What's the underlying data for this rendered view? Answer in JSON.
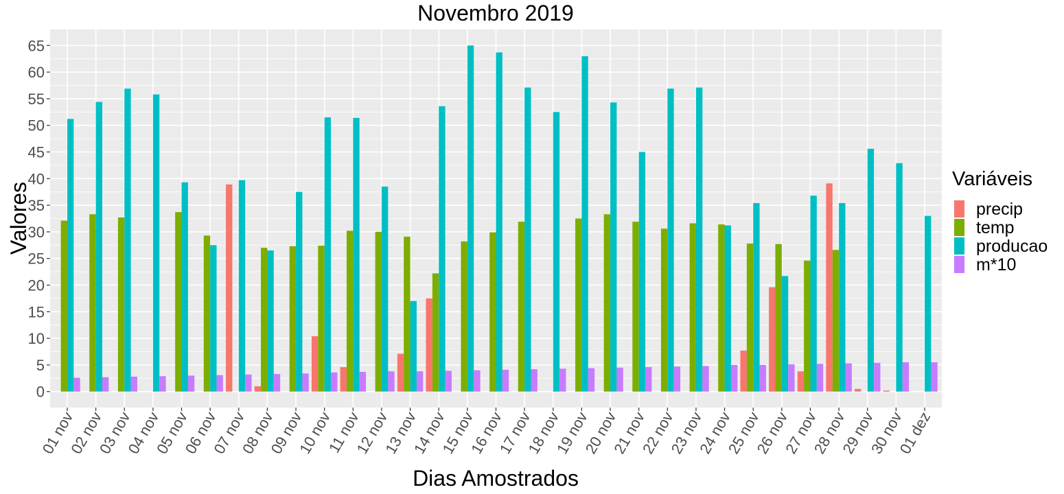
{
  "chart_data": {
    "type": "bar",
    "title": "Novembro 2019",
    "xlabel": "Dias Amostrados",
    "ylabel": "Valores",
    "ylim": [
      -3,
      68
    ],
    "yticks": [
      0,
      5,
      10,
      15,
      20,
      25,
      30,
      35,
      40,
      45,
      50,
      55,
      60,
      65
    ],
    "grid": true,
    "legend_title": "Variáveis",
    "legend_position": "right",
    "categories": [
      "01 nov",
      "02 nov",
      "03 nov",
      "04 nov",
      "05 nov",
      "06 nov",
      "07 nov",
      "08 nov",
      "09 nov",
      "10 nov",
      "11 nov",
      "12 nov",
      "13 nov",
      "14 nov",
      "15 nov",
      "16 nov",
      "17 nov",
      "18 nov",
      "19 nov",
      "20 nov",
      "21 nov",
      "22 nov",
      "23 nov",
      "24 nov",
      "25 nov",
      "26 nov",
      "27 nov",
      "28 nov",
      "29 nov",
      "30 nov",
      "01 dez"
    ],
    "series": [
      {
        "name": "precip",
        "color": "#F8766D",
        "values": [
          0,
          0,
          0,
          0,
          0,
          0,
          38.9,
          1.0,
          0,
          10.4,
          4.6,
          0,
          7.1,
          17.5,
          0,
          0,
          0,
          0,
          0,
          0,
          0,
          0,
          0,
          0,
          7.7,
          19.6,
          3.8,
          39.1,
          0.5,
          0.2,
          0
        ]
      },
      {
        "name": "temp",
        "color": "#7CAE00",
        "values": [
          32.1,
          33.3,
          32.7,
          0,
          33.7,
          29.3,
          0,
          27.0,
          27.3,
          27.4,
          30.2,
          30.0,
          29.1,
          22.2,
          28.2,
          29.9,
          31.9,
          0,
          32.5,
          33.3,
          31.9,
          30.6,
          31.6,
          31.4,
          27.8,
          27.7,
          24.6,
          26.6,
          0,
          0,
          0
        ]
      },
      {
        "name": "producao",
        "color": "#00BFC4",
        "values": [
          51.2,
          54.4,
          56.9,
          55.8,
          39.3,
          27.5,
          39.7,
          26.5,
          37.5,
          51.5,
          51.4,
          38.5,
          17.0,
          53.6,
          65.0,
          63.7,
          57.1,
          52.5,
          63.0,
          54.3,
          45.0,
          56.9,
          57.1,
          31.2,
          35.4,
          21.7,
          36.8,
          35.4,
          45.6,
          42.9,
          33.0
        ]
      },
      {
        "name": "m*10",
        "color": "#C77CFF",
        "values": [
          2.6,
          2.7,
          2.8,
          2.9,
          3.0,
          3.1,
          3.2,
          3.3,
          3.4,
          3.6,
          3.7,
          3.8,
          3.8,
          3.9,
          4.0,
          4.1,
          4.2,
          4.3,
          4.4,
          4.5,
          4.6,
          4.7,
          4.8,
          5.0,
          5.0,
          5.1,
          5.2,
          5.3,
          5.4,
          5.5,
          5.5
        ]
      }
    ]
  }
}
